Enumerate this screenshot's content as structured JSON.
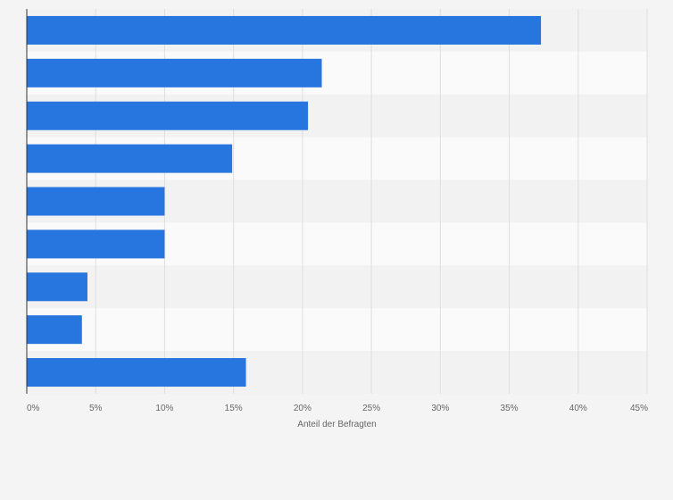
{
  "chart_data": {
    "type": "bar",
    "orientation": "horizontal",
    "categories": [
      "",
      "",
      "",
      "",
      "",
      "",
      "",
      "",
      ""
    ],
    "values": [
      37.3,
      21.4,
      20.4,
      14.9,
      10.0,
      10.0,
      4.4,
      4.0,
      15.9
    ],
    "xlabel": "Anteil der Befragten",
    "xlim": [
      0,
      45
    ],
    "x_ticks": [
      0,
      5,
      10,
      15,
      20,
      25,
      30,
      35,
      40,
      45
    ],
    "x_tick_labels": [
      "0%",
      "5%",
      "10%",
      "15%",
      "20%",
      "25%",
      "30%",
      "35%",
      "40%",
      "45%"
    ],
    "grid": true,
    "legend": false,
    "colors": {
      "bar": "#2775de",
      "background": "#f4f4f4",
      "band_light": "#fafafa",
      "band_dark": "#f2f2f2",
      "grid": "#dedede",
      "axis": "#333333",
      "text": "#666666"
    }
  }
}
